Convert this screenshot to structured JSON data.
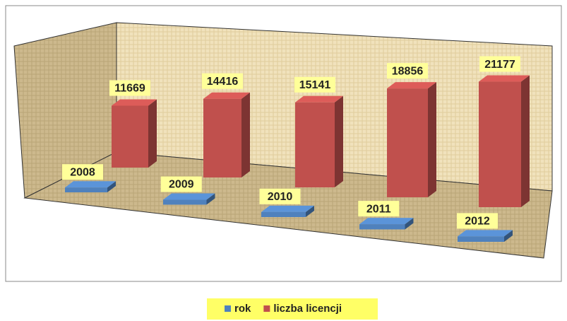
{
  "chart_data": {
    "type": "bar3d",
    "categories": [
      null,
      null,
      null,
      null,
      null
    ],
    "series": [
      {
        "name": "rok",
        "color": "#4f81bd",
        "values": [
          2008,
          2009,
          2010,
          2011,
          2012
        ]
      },
      {
        "name": "liczba licencji",
        "color": "#c0504d",
        "values": [
          11669,
          14416,
          15141,
          18856,
          21177
        ]
      }
    ],
    "legend": "bottom"
  }
}
